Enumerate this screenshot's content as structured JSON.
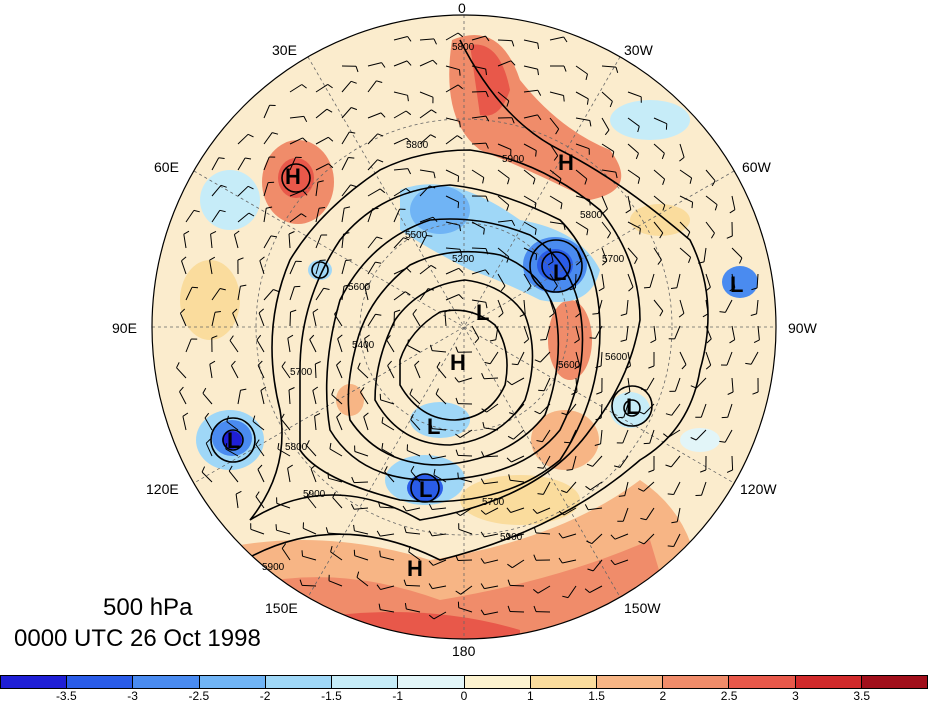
{
  "map": {
    "level": "500 hPa",
    "valid_time": "0000 UTC 26 Oct 1998",
    "longitude_labels": {
      "top": "0",
      "top_left": "30E",
      "top_right": "30W",
      "left_upper": "60E",
      "right_upper": "60W",
      "left": "90E",
      "right": "90W",
      "left_lower": "120E",
      "right_lower": "120W",
      "bottom_left": "150E",
      "bottom_right": "150W",
      "bottom": "180"
    },
    "pressure_centers": [
      "H",
      "H",
      "H",
      "H",
      "L",
      "L",
      "L",
      "L",
      "L",
      "L",
      "L"
    ],
    "contour_labels": [
      "5800",
      "5900",
      "5800",
      "5700",
      "5600",
      "5400",
      "5700",
      "5600",
      "5800",
      "5900",
      "5700",
      "5900",
      "5800",
      "5900",
      "5600",
      "5200",
      "5500"
    ],
    "colors": {
      "negative": [
        "#1f1fd6",
        "#2a5ce8",
        "#4a8bf0",
        "#70b4f5",
        "#9fd7f7",
        "#c6ecf8",
        "#e2f5f8"
      ],
      "positive": [
        "#fcf2cf",
        "#fadc9d",
        "#f7b585",
        "#f08c6a",
        "#e8584a",
        "#d12a2b",
        "#a10f1b"
      ],
      "contour": "#000000"
    },
    "colorbar": {
      "tick_labels": [
        "-3.5",
        "-3",
        "-2.5",
        "-2",
        "-1.5",
        "-1",
        "0",
        "1",
        "1.5",
        "2",
        "2.5",
        "3",
        "3.5"
      ]
    }
  }
}
